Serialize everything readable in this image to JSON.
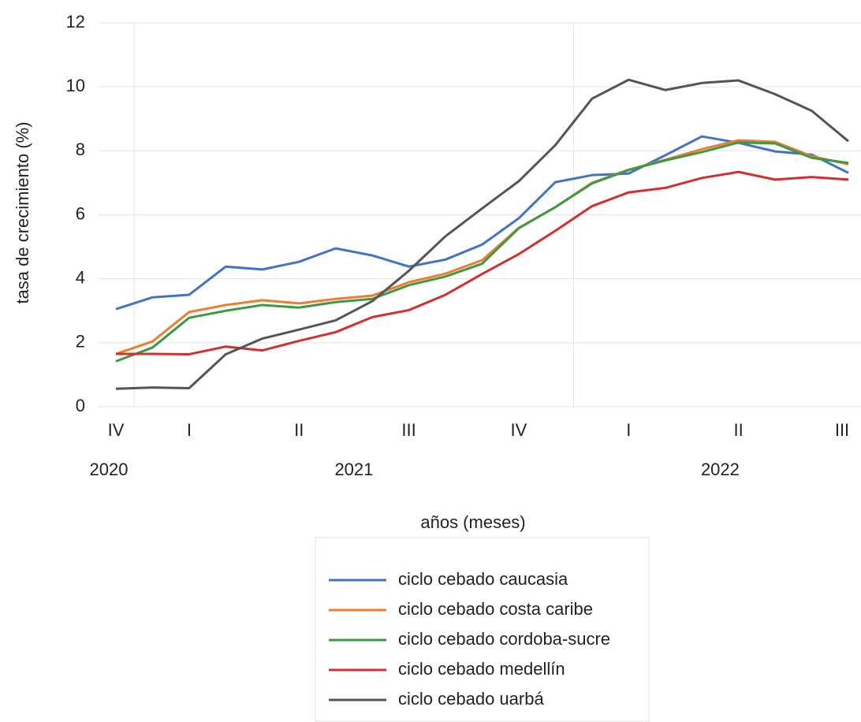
{
  "chart_data": {
    "type": "line",
    "x_label": "años (meses)",
    "y_label": "tasa de crecimiento (%)",
    "categories": [
      "IV",
      null,
      "I",
      null,
      null,
      "II",
      null,
      null,
      "III",
      null,
      null,
      "IV",
      null,
      null,
      "I",
      null,
      null,
      "II",
      null,
      null,
      "III"
    ],
    "year_groups": [
      {
        "label": "2020",
        "count": 1
      },
      {
        "label": "2021",
        "count": 12
      },
      {
        "label": "2022",
        "count": 8
      }
    ],
    "ylim": [
      0,
      12
    ],
    "yticks": [
      0,
      2,
      4,
      6,
      8,
      10,
      12
    ],
    "grid": true,
    "legend": "bottom",
    "series": [
      {
        "name": "ciclo cebado caucasia",
        "color": "#4472c4",
        "values": [
          3.05,
          3.42,
          3.5,
          4.38,
          4.29,
          4.53,
          4.95,
          4.73,
          4.38,
          4.6,
          5.07,
          5.89,
          7.02,
          7.24,
          7.29,
          7.86,
          8.45,
          8.25,
          7.98,
          7.88,
          7.31
        ]
      },
      {
        "name": "ciclo cebado costa caribe",
        "color": "#ed7d31",
        "values": [
          1.65,
          2.04,
          2.96,
          3.18,
          3.33,
          3.23,
          3.37,
          3.47,
          3.89,
          4.16,
          4.58,
          5.59,
          6.24,
          7.0,
          7.41,
          7.72,
          8.05,
          8.33,
          8.28,
          7.83,
          7.58
        ]
      },
      {
        "name": "ciclo cebado cordoba-sucre",
        "color": "#3c9a47",
        "values": [
          1.42,
          1.85,
          2.78,
          3.0,
          3.18,
          3.1,
          3.27,
          3.37,
          3.8,
          4.07,
          4.47,
          5.58,
          6.24,
          6.98,
          7.4,
          7.7,
          7.96,
          8.26,
          8.23,
          7.78,
          7.62
        ]
      },
      {
        "name": "ciclo cebado medellín",
        "color": "#d32f2f",
        "values": [
          1.65,
          1.65,
          1.64,
          1.88,
          1.76,
          2.06,
          2.33,
          2.8,
          3.02,
          3.5,
          4.15,
          4.77,
          5.5,
          6.27,
          6.7,
          6.84,
          7.15,
          7.34,
          7.1,
          7.18,
          7.1
        ]
      },
      {
        "name": "ciclo cebado uarbá",
        "color": "#555555",
        "values": [
          0.56,
          0.6,
          0.58,
          1.64,
          2.13,
          2.41,
          2.7,
          3.3,
          4.25,
          5.33,
          6.2,
          7.05,
          8.18,
          9.63,
          10.22,
          9.9,
          10.12,
          10.2,
          9.77,
          9.25,
          8.3
        ]
      }
    ]
  }
}
